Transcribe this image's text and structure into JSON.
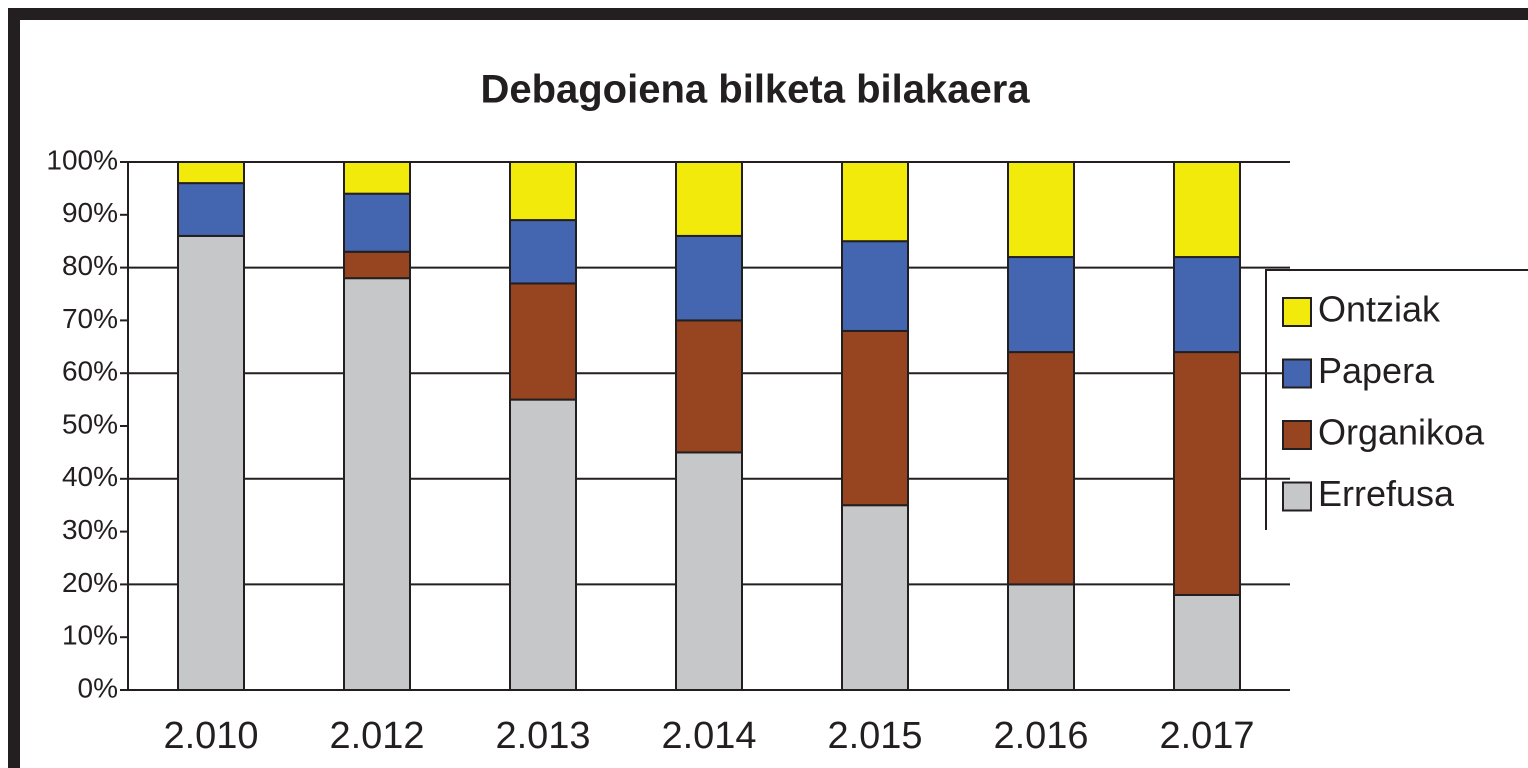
{
  "chart_data": {
    "type": "stacked_bar",
    "title": "Debagoiena bilketa bilakaera",
    "categories": [
      "2.010",
      "2.012",
      "2.013",
      "2.014",
      "2.015",
      "2.016",
      "2.017"
    ],
    "series": [
      {
        "name": "Errefusa",
        "color": "#c6c7c9",
        "values": [
          86,
          78,
          55,
          45,
          35,
          20,
          18
        ]
      },
      {
        "name": "Organikoa",
        "color": "#974521",
        "values": [
          0,
          5,
          22,
          25,
          33,
          44,
          46
        ]
      },
      {
        "name": "Papera",
        "color": "#4466b0",
        "values": [
          10,
          11,
          12,
          16,
          17,
          18,
          18
        ]
      },
      {
        "name": "Ontziak",
        "color": "#f2ea0a",
        "values": [
          4,
          6,
          11,
          14,
          15,
          18,
          18
        ]
      }
    ],
    "ylim": [
      0,
      100
    ],
    "yticks": [
      {
        "value": 0,
        "label": "0%"
      },
      {
        "value": 10,
        "label": "10%"
      },
      {
        "value": 20,
        "label": "20%"
      },
      {
        "value": 30,
        "label": "30%"
      },
      {
        "value": 40,
        "label": "40%"
      },
      {
        "value": 50,
        "label": "50%"
      },
      {
        "value": 60,
        "label": "60%"
      },
      {
        "value": 70,
        "label": "70%"
      },
      {
        "value": 80,
        "label": "80%"
      },
      {
        "value": 90,
        "label": "90%"
      },
      {
        "value": 100,
        "label": "100%"
      }
    ],
    "grid": true,
    "legend": "right"
  }
}
